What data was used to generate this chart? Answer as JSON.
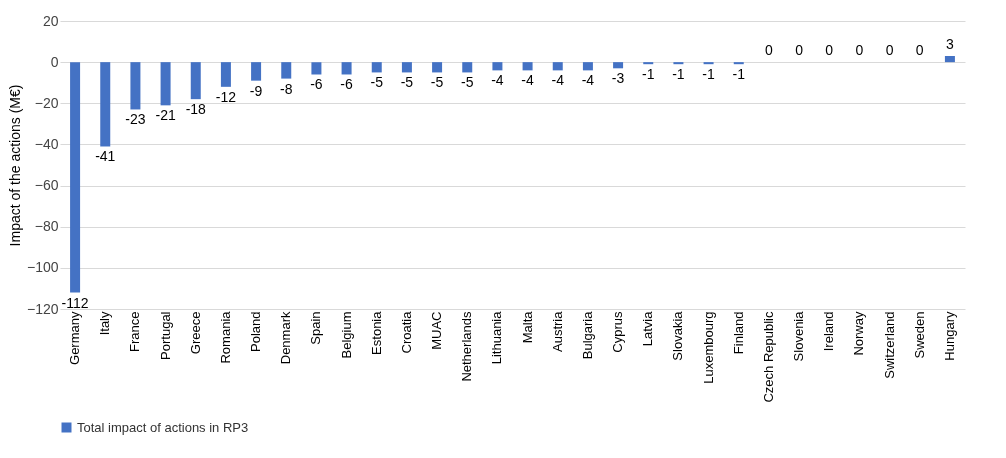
{
  "chart_data": {
    "type": "bar",
    "ylabel": "Impact of the actions (M€)",
    "categories": [
      "Germany",
      "Italy",
      "France",
      "Portugal",
      "Greece",
      "Romania",
      "Poland",
      "Denmark",
      "Spain",
      "Belgium",
      "Estonia",
      "Croatia",
      "MUAC",
      "Netherlands",
      "Lithuania",
      "Malta",
      "Austria",
      "Bulgaria",
      "Cyprus",
      "Latvia",
      "Slovakia",
      "Luxembourg",
      "Finland",
      "Czech Republic",
      "Slovenia",
      "Ireland",
      "Norway",
      "Switzerland",
      "Sweden",
      "Hungary"
    ],
    "series": [
      {
        "name": "Total impact of actions in RP3",
        "color": "#4472c4",
        "values": [
          -112,
          -41,
          -23,
          -21,
          -18,
          -12,
          -9,
          -8,
          -6,
          -6,
          -5,
          -5,
          -5,
          -5,
          -4,
          -4,
          -4,
          -4,
          -3,
          -1,
          -1,
          -1,
          -1,
          0,
          0,
          0,
          0,
          0,
          0,
          3
        ]
      }
    ],
    "ylim": [
      -120,
      20
    ],
    "yticks": [
      -120,
      -100,
      -80,
      -60,
      -40,
      -20,
      0,
      20
    ],
    "grid": "y",
    "legend": "bottom",
    "data_labels": true
  }
}
